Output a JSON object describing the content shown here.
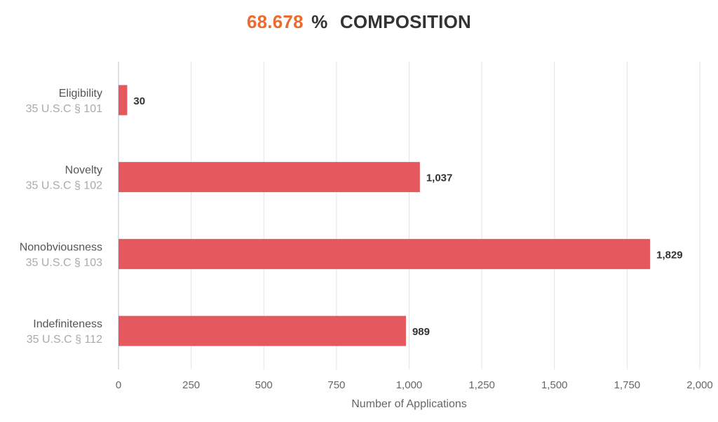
{
  "header": {
    "percent_value": "68.678",
    "percent_sign": "%",
    "title": "COMPOSITION",
    "percent_color": "#ec6b2d"
  },
  "chart_data": {
    "type": "bar",
    "orientation": "horizontal",
    "categories": [
      {
        "label": "Eligibility",
        "sublabel": "35 U.S.C § 101"
      },
      {
        "label": "Novelty",
        "sublabel": "35 U.S.C § 102"
      },
      {
        "label": "Nonobviousness",
        "sublabel": "35 U.S.C § 103"
      },
      {
        "label": "Indefiniteness",
        "sublabel": "35 U.S.C § 112"
      }
    ],
    "values": [
      30,
      1037,
      1829,
      989
    ],
    "data_labels": [
      "30",
      "1,037",
      "1,829",
      "989"
    ],
    "xlabel": "Number of Applications",
    "ylabel": "",
    "xlim": [
      0,
      2000
    ],
    "x_ticks": [
      0,
      250,
      500,
      750,
      1000,
      1250,
      1500,
      1750,
      2000
    ],
    "x_tick_labels": [
      "0",
      "250",
      "500",
      "750",
      "1,000",
      "1,250",
      "1,500",
      "1,750",
      "2,000"
    ],
    "grid": true,
    "legend": "none",
    "bar_color": "#e5595e"
  }
}
